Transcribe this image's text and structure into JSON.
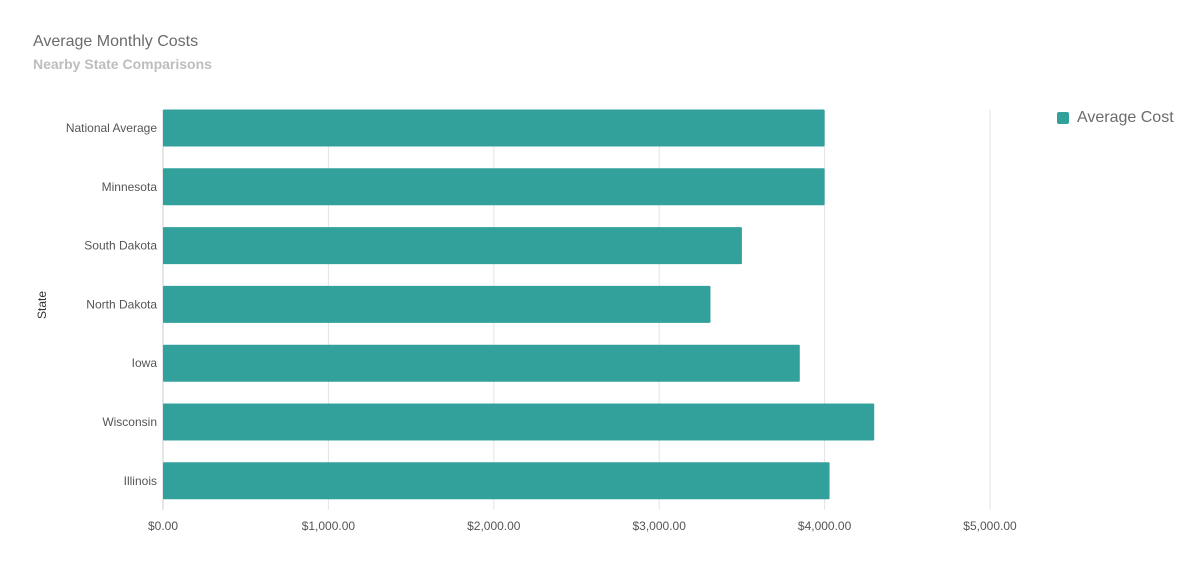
{
  "chart_data": {
    "type": "bar",
    "orientation": "horizontal",
    "title": "Average Monthly Costs",
    "subtitle": "Nearby State Comparisons",
    "xlabel": "",
    "ylabel": "State",
    "categories": [
      "National Average",
      "Minnesota",
      "South Dakota",
      "North Dakota",
      "Iowa",
      "Wisconsin",
      "Illinois"
    ],
    "series": [
      {
        "name": "Average Cost",
        "values": [
          4000,
          4000,
          3500,
          3310,
          3850,
          4300,
          4030
        ],
        "color": "#33a19b"
      }
    ],
    "xlim": [
      0,
      5000
    ],
    "xticks": [
      0,
      1000,
      2000,
      3000,
      4000,
      5000
    ],
    "xtick_labels": [
      "$0.00",
      "$1,000.00",
      "$2,000.00",
      "$3,000.00",
      "$4,000.00",
      "$5,000.00"
    ],
    "grid": true,
    "legend": "top-right"
  }
}
